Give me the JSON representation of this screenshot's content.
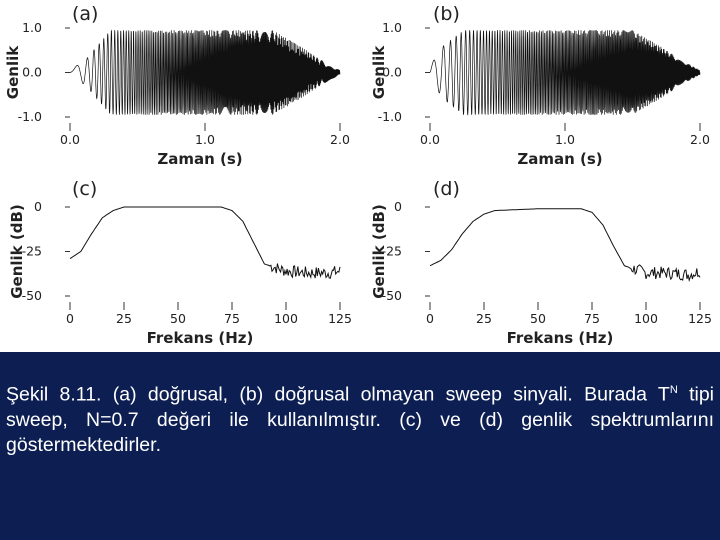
{
  "chart_data": [
    {
      "type": "line",
      "panel_label": "(a)",
      "xlabel": "Zaman (s)",
      "ylabel": "Genlik",
      "xlim": [
        0,
        2.0
      ],
      "ylim": [
        -1.0,
        1.0
      ],
      "xticks": [
        "0.0",
        "1.0",
        "2.0"
      ],
      "yticks": [
        "1.0",
        "0.0",
        "-1.0"
      ],
      "series": [
        {
          "signal": "linear sweep",
          "envelope_t": [
            0,
            0.12,
            0.3,
            1.5,
            1.7,
            1.85,
            2.0
          ],
          "envelope_amp": [
            0.05,
            0.3,
            0.95,
            0.95,
            0.6,
            0.3,
            0.05
          ]
        }
      ]
    },
    {
      "type": "line",
      "panel_label": "(b)",
      "xlabel": "Zaman (s)",
      "ylabel": "Genlik",
      "xlim": [
        0,
        2.0
      ],
      "ylim": [
        -1.0,
        1.0
      ],
      "xticks": [
        "0.0",
        "1.0",
        "2.0"
      ],
      "yticks": [
        "1.0",
        "0.0",
        "-1.0"
      ],
      "series": [
        {
          "signal": "nonlinear sweep",
          "envelope_t": [
            0,
            0.1,
            0.25,
            1.5,
            1.7,
            1.85,
            2.0
          ],
          "envelope_amp": [
            0.15,
            0.6,
            0.95,
            0.95,
            0.6,
            0.3,
            0.05
          ]
        }
      ]
    },
    {
      "type": "line",
      "panel_label": "(c)",
      "xlabel": "Frekans (Hz)",
      "ylabel": "Genlik (dB)",
      "xlim": [
        0,
        125
      ],
      "ylim": [
        -50,
        0
      ],
      "xticks": [
        "0",
        "25",
        "50",
        "75",
        "100",
        "125"
      ],
      "yticks": [
        "0",
        "-25",
        "-50"
      ],
      "series": [
        {
          "x": [
            0,
            5,
            10,
            15,
            20,
            25,
            30,
            50,
            70,
            75,
            80,
            85,
            90,
            95,
            100,
            110,
            120,
            125
          ],
          "y": [
            -29,
            -25,
            -15,
            -6,
            -2,
            0,
            0,
            0,
            0,
            -2,
            -8,
            -20,
            -32,
            -34,
            -36,
            -37,
            -37,
            -36
          ]
        }
      ]
    },
    {
      "type": "line",
      "panel_label": "(d)",
      "xlabel": "Frekans (Hz)",
      "ylabel": "Genlik (dB)",
      "xlim": [
        0,
        125
      ],
      "ylim": [
        -50,
        0
      ],
      "xticks": [
        "0",
        "25",
        "50",
        "75",
        "100",
        "125"
      ],
      "yticks": [
        "0",
        "-25",
        "-50"
      ],
      "series": [
        {
          "x": [
            0,
            5,
            10,
            15,
            20,
            25,
            30,
            50,
            70,
            75,
            80,
            85,
            90,
            95,
            100,
            110,
            120,
            125
          ],
          "y": [
            -33,
            -30,
            -24,
            -15,
            -8,
            -4,
            -2,
            -1,
            -1,
            -3,
            -10,
            -22,
            -33,
            -35,
            -37,
            -37,
            -38,
            -36
          ]
        }
      ]
    }
  ],
  "caption": {
    "number": "Şekil 8.11.",
    "part1": " (a) doğrusal, (b) doğrusal olmayan sweep sinyali. Burada T",
    "sup": "N",
    "part2": " tipi sweep, N=0.7 değeri ile kullanılmıştır. (c) ve (d) genlik spektrumlarını göstermektedirler."
  }
}
